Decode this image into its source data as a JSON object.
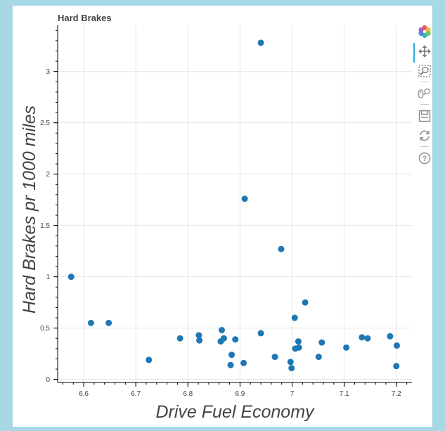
{
  "title": "Hard Brakes",
  "chart_data": {
    "type": "scatter",
    "title": "Hard Brakes",
    "xlabel": "Drive Fuel Economy",
    "ylabel": "Hard Brakes pr 1000 miles",
    "xlim": [
      6.55,
      7.23
    ],
    "ylim": [
      -0.03,
      3.45
    ],
    "x_ticks": [
      6.6,
      6.7,
      6.8,
      6.9,
      7.0,
      7.1,
      7.2
    ],
    "x_tick_labels": [
      "6.6",
      "6.7",
      "6.8",
      "6.9",
      "7",
      "7.1",
      "7.2"
    ],
    "y_ticks": [
      0,
      0.5,
      1,
      1.5,
      2,
      2.5,
      3
    ],
    "y_tick_labels": [
      "0",
      "0.5",
      "1",
      "1.5",
      "2",
      "2.5",
      "3"
    ],
    "grid": true,
    "marker_color": "#1f77b4",
    "x": [
      6.576,
      6.614,
      6.648,
      6.725,
      6.785,
      6.821,
      6.822,
      6.863,
      6.865,
      6.869,
      6.882,
      6.884,
      6.891,
      6.907,
      6.909,
      6.94,
      6.94,
      6.967,
      6.979,
      6.997,
      6.999,
      7.005,
      7.006,
      7.012,
      7.013,
      7.025,
      7.051,
      7.057,
      7.104,
      7.134,
      7.145,
      7.188,
      7.2,
      7.201
    ],
    "y": [
      1.0,
      0.55,
      0.55,
      0.19,
      0.4,
      0.43,
      0.38,
      0.37,
      0.48,
      0.4,
      0.14,
      0.24,
      0.39,
      0.16,
      1.76,
      3.28,
      0.45,
      0.22,
      1.27,
      0.17,
      0.11,
      0.6,
      0.3,
      0.37,
      0.31,
      0.75,
      0.22,
      0.36,
      0.31,
      0.41,
      0.4,
      0.42,
      0.13,
      0.33
    ]
  },
  "toolbar": {
    "tools": [
      {
        "name": "bokeh-logo-icon",
        "interactable": true
      },
      {
        "name": "pan-icon",
        "interactable": true
      },
      {
        "name": "box-zoom-icon",
        "interactable": true
      },
      {
        "name": "wheel-zoom-icon",
        "interactable": true
      },
      {
        "name": "save-icon",
        "interactable": true
      },
      {
        "name": "reset-icon",
        "interactable": true
      },
      {
        "name": "help-icon",
        "interactable": true
      }
    ]
  }
}
